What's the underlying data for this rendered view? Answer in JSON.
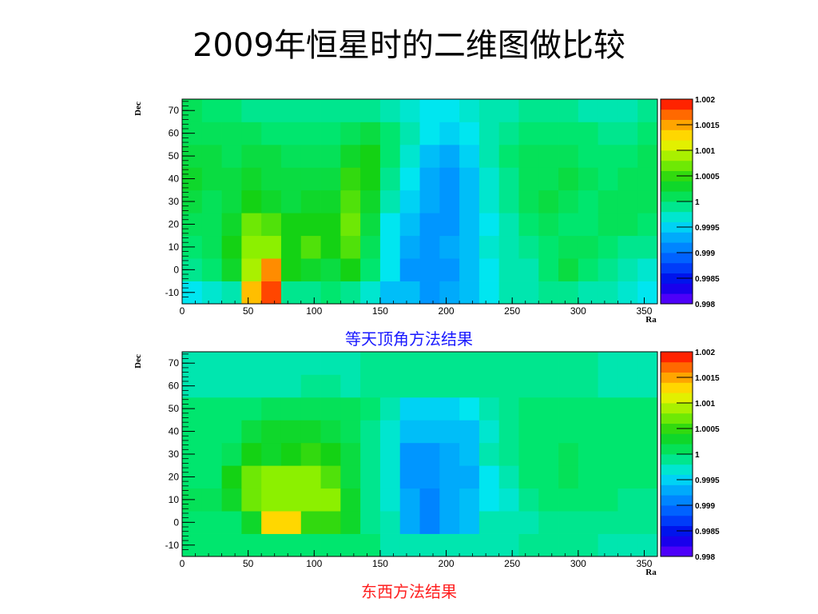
{
  "slide": {
    "title": "2009年恒星时的二维图做比较"
  },
  "charts": [
    {
      "caption": "等天顶角方法结果",
      "caption_color": "#1a1aff"
    },
    {
      "caption": "东西方法结果",
      "caption_color": "#ff2020"
    }
  ],
  "chart_data": [
    {
      "type": "heatmap",
      "title": "",
      "xlabel": "Ra",
      "ylabel": "Dec",
      "xlim": [
        0,
        360
      ],
      "ylim": [
        -15,
        75
      ],
      "x_ticks": [
        "0",
        "50",
        "100",
        "150",
        "200",
        "250",
        "300",
        "350"
      ],
      "y_ticks": [
        "-10",
        "0",
        "10",
        "20",
        "30",
        "40",
        "50",
        "60",
        "70"
      ],
      "zlim": [
        0.998,
        1.002
      ],
      "colorbar_ticks": [
        "1.002",
        "1.0015",
        "1.001",
        "1.0005",
        "1",
        "0.9995",
        "0.999",
        "0.9985",
        "0.998"
      ],
      "x_bin_edges": [
        0,
        15,
        30,
        45,
        60,
        75,
        90,
        105,
        120,
        135,
        150,
        165,
        180,
        195,
        210,
        225,
        240,
        255,
        270,
        285,
        300,
        315,
        330,
        345,
        360
      ],
      "y_bin_edges": [
        -15,
        -5,
        5,
        15,
        25,
        35,
        45,
        55,
        65,
        75
      ],
      "z": [
        [
          0.9996,
          0.9997,
          0.9998,
          1.0014,
          1.0018,
          0.9999,
          0.9999,
          1.0,
          0.9999,
          0.9997,
          0.9994,
          0.9994,
          0.9992,
          0.9993,
          0.9994,
          0.9996,
          0.9998,
          0.9998,
          0.9999,
          0.9999,
          0.9998,
          0.9998,
          0.9997,
          0.9996
        ],
        [
          0.9999,
          1.0,
          1.0003,
          1.0009,
          1.0016,
          1.0004,
          1.0003,
          1.0002,
          1.0004,
          1.0,
          0.9996,
          0.9992,
          0.9992,
          0.9992,
          0.9994,
          0.9996,
          0.9998,
          0.9998,
          1.0,
          1.0002,
          1.0,
          0.9999,
          0.9998,
          0.9997
        ],
        [
          1.0,
          1.0001,
          1.0004,
          1.0008,
          1.0008,
          1.0004,
          1.0006,
          1.0004,
          1.0006,
          1.0001,
          0.9996,
          0.9993,
          0.9992,
          0.9993,
          0.9994,
          0.9997,
          0.9998,
          0.9999,
          1.0,
          1.0001,
          1.0001,
          1.0,
          0.9999,
          0.9999
        ],
        [
          1.0001,
          1.0001,
          1.0003,
          1.0007,
          1.0006,
          1.0004,
          1.0004,
          1.0004,
          1.0007,
          1.0002,
          0.9996,
          0.9994,
          0.9992,
          0.9992,
          0.9994,
          0.9996,
          0.9998,
          1.0,
          1.0001,
          1.0,
          1.0,
          1.0001,
          1.0001,
          1.0
        ],
        [
          1.0002,
          1.0001,
          1.0002,
          1.0004,
          1.0003,
          1.0002,
          1.0003,
          1.0003,
          1.0006,
          1.0003,
          0.9998,
          0.9995,
          0.9993,
          0.9992,
          0.9994,
          0.9997,
          0.9999,
          1.0001,
          1.0002,
          1.0001,
          1.0,
          1.0001,
          1.0001,
          1.0001
        ],
        [
          1.0003,
          1.0002,
          1.0002,
          1.0003,
          1.0002,
          1.0002,
          1.0002,
          1.0002,
          1.0005,
          1.0004,
          0.9999,
          0.9996,
          0.9993,
          0.9992,
          0.9994,
          0.9997,
          0.9999,
          1.0001,
          1.0001,
          1.0002,
          1.0001,
          1.0,
          1.0001,
          1.0001
        ],
        [
          1.0002,
          1.0002,
          1.0001,
          1.0002,
          1.0002,
          1.0001,
          1.0001,
          1.0001,
          1.0003,
          1.0004,
          1.0,
          0.9997,
          0.9994,
          0.9993,
          0.9995,
          0.9998,
          1.0,
          1.0001,
          1.0001,
          1.0001,
          1.0,
          1.0,
          1.0,
          1.0001
        ],
        [
          1.0001,
          1.0001,
          1.0001,
          1.0001,
          1.0,
          1.0,
          1.0,
          1.0,
          1.0001,
          1.0002,
          1.0,
          0.9998,
          0.9996,
          0.9995,
          0.9996,
          0.9998,
          0.9999,
          1.0,
          1.0,
          1.0,
          1.0,
          0.9999,
          0.9999,
          1.0
        ],
        [
          1.0001,
          1.0,
          1.0,
          0.9999,
          0.9999,
          0.9999,
          0.9999,
          0.9999,
          0.9999,
          0.9999,
          0.9998,
          0.9997,
          0.9996,
          0.9996,
          0.9997,
          0.9998,
          0.9998,
          0.9999,
          0.9999,
          0.9999,
          0.9998,
          0.9998,
          0.9998,
          0.9999
        ]
      ]
    },
    {
      "type": "heatmap",
      "title": "",
      "xlabel": "Ra",
      "ylabel": "Dec",
      "xlim": [
        0,
        360
      ],
      "ylim": [
        -15,
        75
      ],
      "x_ticks": [
        "0",
        "50",
        "100",
        "150",
        "200",
        "250",
        "300",
        "350"
      ],
      "y_ticks": [
        "-10",
        "0",
        "10",
        "20",
        "30",
        "40",
        "50",
        "60",
        "70"
      ],
      "zlim": [
        0.998,
        1.002
      ],
      "colorbar_ticks": [
        "1.002",
        "1.0015",
        "1.001",
        "1.0005",
        "1",
        "0.9995",
        "0.999",
        "0.9985",
        "0.998"
      ],
      "x_bin_edges": [
        0,
        15,
        30,
        45,
        60,
        75,
        90,
        105,
        120,
        135,
        150,
        165,
        180,
        195,
        210,
        225,
        240,
        255,
        270,
        285,
        300,
        315,
        330,
        345,
        360
      ],
      "y_bin_edges": [
        -15,
        -5,
        5,
        15,
        25,
        35,
        45,
        55,
        65,
        75
      ],
      "z": [
        [
          1.0,
          1.0,
          1.0,
          1.0,
          1.0,
          1.0,
          1.0,
          1.0,
          1.0,
          1.0,
          0.9998,
          0.9998,
          0.9998,
          0.9998,
          0.9998,
          0.9998,
          0.9998,
          0.9999,
          0.9999,
          0.9999,
          0.9999,
          0.9998,
          0.9998,
          0.9998
        ],
        [
          1.0,
          1.0,
          1.0,
          1.0003,
          1.0013,
          1.0013,
          1.0005,
          1.0005,
          1.0003,
          0.9999,
          0.9998,
          0.9993,
          0.9991,
          0.9993,
          0.9994,
          0.9998,
          0.9998,
          0.9998,
          0.9999,
          0.9999,
          0.9999,
          0.9999,
          0.9999,
          0.9999
        ],
        [
          1.0001,
          1.0001,
          1.0003,
          1.0007,
          1.0008,
          1.0008,
          1.0008,
          1.0008,
          1.0003,
          0.9999,
          0.9997,
          0.9993,
          0.9991,
          0.9993,
          0.9994,
          0.9996,
          0.9997,
          0.9999,
          1.0,
          1.0,
          1.0,
          1.0,
          0.9999,
          0.9999
        ],
        [
          1.0,
          1.0,
          1.0004,
          1.0007,
          1.0008,
          1.0008,
          1.0008,
          1.0006,
          1.0002,
          0.9999,
          0.9997,
          0.9992,
          0.9992,
          0.9993,
          0.9993,
          0.9996,
          0.9998,
          1.0,
          1.0,
          1.0001,
          1.0,
          1.0,
          1.0,
          1.0
        ],
        [
          1.0,
          1.0,
          1.0001,
          1.0004,
          1.0003,
          1.0004,
          1.0005,
          1.0004,
          1.0002,
          0.9999,
          0.9997,
          0.9992,
          0.9992,
          0.9993,
          0.9994,
          0.9998,
          0.9999,
          1.0,
          1.0,
          1.0001,
          1.0,
          1.0,
          1.0,
          1.0
        ],
        [
          1.0,
          1.0,
          1.0,
          1.0002,
          1.0003,
          1.0003,
          1.0003,
          1.0002,
          1.0001,
          0.9999,
          0.9997,
          0.9994,
          0.9994,
          0.9994,
          0.9994,
          0.9997,
          0.9999,
          1.0,
          1.0,
          1.0,
          1.0,
          1.0,
          1.0,
          1.0
        ],
        [
          1.0,
          1.0,
          1.0,
          1.0,
          1.0001,
          1.0001,
          1.0001,
          1.0001,
          1.0001,
          1.0,
          0.9998,
          0.9995,
          0.9995,
          0.9995,
          0.9996,
          0.9998,
          0.9999,
          1.0,
          1.0,
          1.0,
          1.0,
          1.0,
          1.0,
          1.0
        ],
        [
          0.9998,
          0.9998,
          0.9998,
          0.9998,
          0.9998,
          0.9998,
          0.9999,
          0.9999,
          0.9998,
          0.9999,
          0.9999,
          0.9999,
          0.9999,
          0.9999,
          0.9999,
          0.9999,
          0.9999,
          0.9999,
          0.9999,
          0.9999,
          0.9999,
          0.9998,
          0.9998,
          0.9998
        ],
        [
          0.9998,
          0.9998,
          0.9998,
          0.9998,
          0.9998,
          0.9998,
          0.9998,
          0.9998,
          0.9998,
          0.9999,
          0.9999,
          0.9999,
          0.9999,
          0.9999,
          0.9999,
          0.9999,
          0.9999,
          0.9999,
          0.9999,
          0.9999,
          0.9999,
          0.9998,
          0.9998,
          0.9998
        ]
      ]
    }
  ]
}
